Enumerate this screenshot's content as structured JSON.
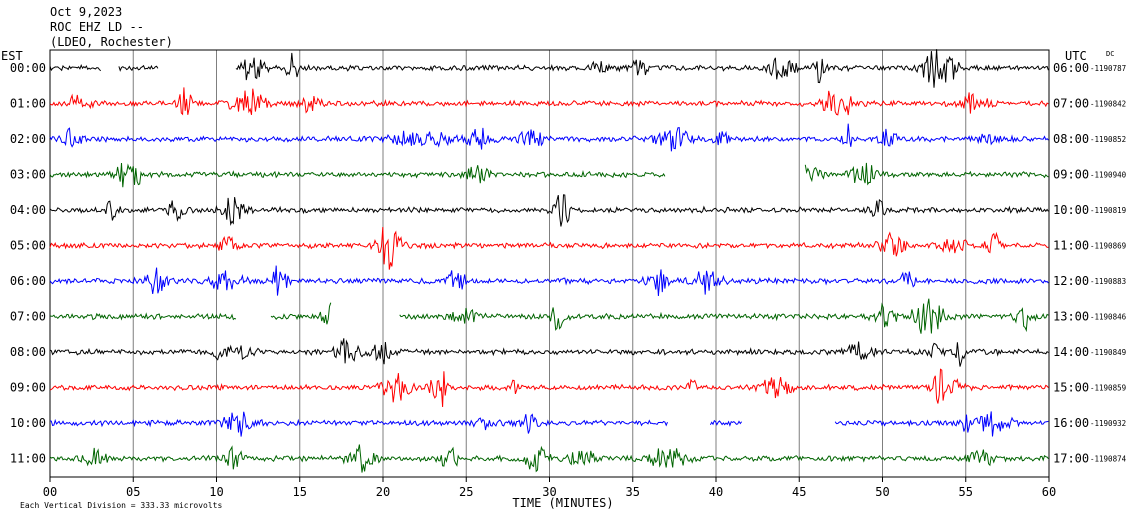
{
  "header": {
    "date": "Oct 9,2023",
    "station": "ROC EHZ LD --",
    "network": "(LDEO, Rochester)",
    "left_zone": "EST",
    "right_zone": "UTC",
    "dc_label": "DC"
  },
  "footer": {
    "xlabel": "TIME (MINUTES)",
    "scale_note": "Each Vertical Division = 333.33 microvolts"
  },
  "chart_data": {
    "type": "line",
    "title": "",
    "xlabel": "TIME (MINUTES)",
    "ylabel": "",
    "xlim": [
      0,
      60
    ],
    "grid": true,
    "x_ticks": [
      "00",
      "05",
      "10",
      "15",
      "20",
      "25",
      "30",
      "35",
      "40",
      "45",
      "50",
      "55",
      "60"
    ],
    "trace_colors": [
      "#000000",
      "#ff0000",
      "#0000ff",
      "#006400"
    ],
    "rows": [
      {
        "est": "00:00",
        "utc": "06:00",
        "dc": "-1190787",
        "color": "#000000",
        "gaps": [
          [
            3.1,
            4.1
          ],
          [
            6.5,
            11.1
          ]
        ]
      },
      {
        "est": "01:00",
        "utc": "07:00",
        "dc": "-1190842",
        "color": "#ff0000",
        "gaps": []
      },
      {
        "est": "02:00",
        "utc": "08:00",
        "dc": "-1190852",
        "color": "#0000ff",
        "gaps": []
      },
      {
        "est": "03:00",
        "utc": "09:00",
        "dc": "-1190940",
        "color": "#006400",
        "gaps": [
          [
            37.0,
            45.3
          ]
        ]
      },
      {
        "est": "04:00",
        "utc": "10:00",
        "dc": "-1190819",
        "color": "#000000",
        "gaps": []
      },
      {
        "est": "05:00",
        "utc": "11:00",
        "dc": "-1190869",
        "color": "#ff0000",
        "gaps": []
      },
      {
        "est": "06:00",
        "utc": "12:00",
        "dc": "-1190883",
        "color": "#0000ff",
        "gaps": []
      },
      {
        "est": "07:00",
        "utc": "13:00",
        "dc": "-1190846",
        "color": "#006400",
        "gaps": [
          [
            11.2,
            13.2
          ],
          [
            16.9,
            21.0
          ]
        ]
      },
      {
        "est": "08:00",
        "utc": "14:00",
        "dc": "-1190849",
        "color": "#000000",
        "gaps": []
      },
      {
        "est": "09:00",
        "utc": "15:00",
        "dc": "-1190859",
        "color": "#ff0000",
        "gaps": []
      },
      {
        "est": "10:00",
        "utc": "16:00",
        "dc": "-1190932",
        "color": "#0000ff",
        "gaps": [
          [
            37.1,
            39.6
          ],
          [
            41.6,
            47.1
          ]
        ]
      },
      {
        "est": "11:00",
        "utc": "17:00",
        "dc": "-1190874",
        "color": "#006400",
        "gaps": []
      }
    ]
  }
}
